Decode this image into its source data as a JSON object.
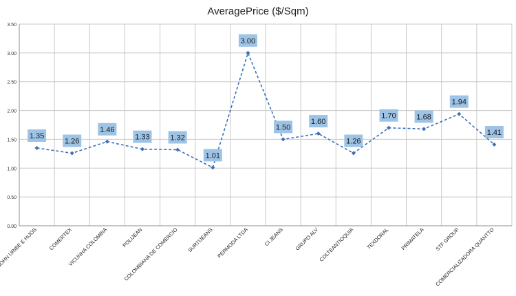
{
  "chart_data": {
    "type": "line",
    "title": "AveragePrice ($/Sqm)",
    "xlabel": "",
    "ylabel": "",
    "ylim": [
      0,
      3.5
    ],
    "yticks": [
      "0.00",
      "0.50",
      "1.00",
      "1.50",
      "2.00",
      "2.50",
      "3.00",
      "3.50"
    ],
    "grid": true,
    "legend": "none",
    "categories": [
      "JOHN URIBE E HIJOS",
      "COMERTEX",
      "VICUNHA COLOMBIA",
      "POLIJEAN",
      "COLOMBIANA DE COMERCIO",
      "SURTIJEANS",
      "PERMODA LTDA",
      "CI JEANS",
      "GRUPO ALV",
      "COLTEANTIOQUIA",
      "TEXDORAL",
      "PRIMATELA",
      "STF GROUP",
      "COMERCIALIZADORA QUANTTO"
    ],
    "series": [
      {
        "values": [
          1.35,
          1.26,
          1.46,
          1.33,
          1.32,
          1.01,
          3.0,
          1.5,
          1.6,
          1.26,
          1.7,
          1.68,
          1.94,
          1.41
        ],
        "labels": [
          "1.35",
          "1.26",
          "1.46",
          "1.33",
          "1.32",
          "1.01",
          "3.00",
          "1.50",
          "1.60",
          "1.26",
          "1.70",
          "1.68",
          "1.94",
          "1.41"
        ]
      }
    ],
    "colors": {
      "line": "#3b6fb6",
      "marker": "#3b6fb6",
      "label_bg": "#9dc3e6",
      "label_text": "#1a1a1a",
      "grid": "#c8c8c8",
      "axis": "#8c8c8c"
    }
  }
}
